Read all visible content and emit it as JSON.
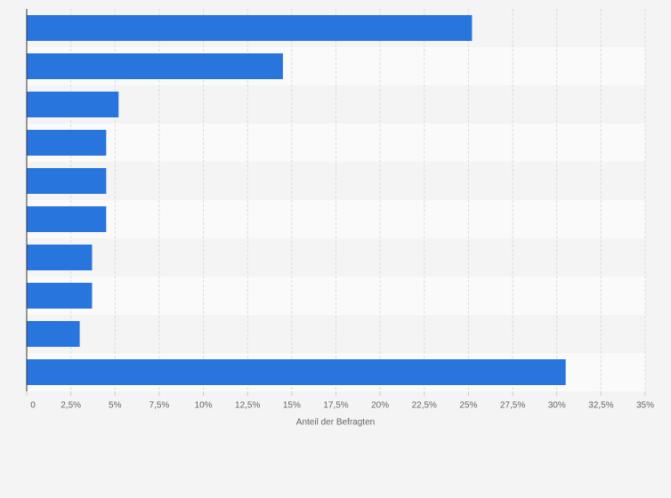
{
  "chart_data": {
    "type": "bar",
    "orientation": "horizontal",
    "x_label": "Anteil der Befragten",
    "categories": [
      null,
      null,
      null,
      null,
      null,
      null,
      null,
      null,
      null,
      null
    ],
    "values": [
      25.2,
      14.5,
      5.2,
      4.5,
      4.5,
      4.5,
      3.7,
      3.7,
      3.0,
      30.5
    ],
    "color": "#2876dd",
    "xlim": [
      0,
      35
    ],
    "xticks": [
      0,
      {
        "value": 2.5,
        "label": "2,5%"
      },
      {
        "value": 5,
        "label": "5%"
      },
      {
        "value": 7.5,
        "label": "7,5%"
      },
      {
        "value": 10,
        "label": "10%"
      },
      {
        "value": 12.5,
        "label": "12,5%"
      },
      {
        "value": 15,
        "label": "15%"
      },
      {
        "value": 17.5,
        "label": "17,5%"
      },
      {
        "value": 20,
        "label": "20%"
      },
      {
        "value": 22.5,
        "label": "22,5%"
      },
      {
        "value": 25,
        "label": "25%"
      },
      {
        "value": 27.5,
        "label": "27,5%"
      },
      {
        "value": 30,
        "label": "30%"
      },
      {
        "value": 32.5,
        "label": "32,5%"
      },
      {
        "value": 35,
        "label": "35%"
      }
    ],
    "grid": true
  }
}
